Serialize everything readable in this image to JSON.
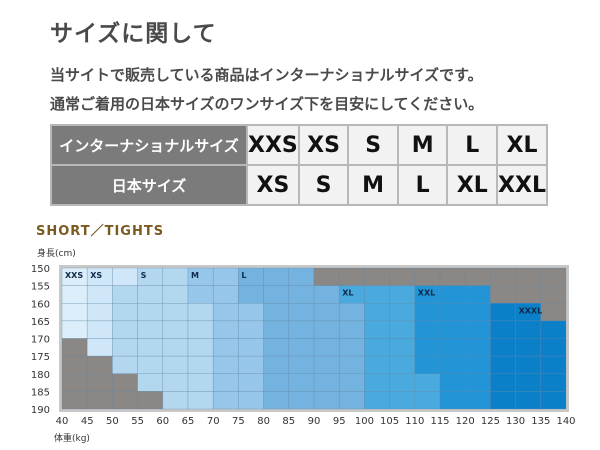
{
  "title": "サイズに関して",
  "description": [
    "当サイトで販売している商品はインターナショナルサイズです。",
    "通常ご着用の日本サイズのワンサイズ下を目安にしてください。"
  ],
  "size_table": {
    "rows": [
      {
        "header": "インターナショナルサイズ",
        "sizes": [
          "XXS",
          "XS",
          "S",
          "M",
          "L",
          "XL"
        ]
      },
      {
        "header": "日本サイズ",
        "sizes": [
          "XS",
          "S",
          "M",
          "L",
          "XL",
          "XXL"
        ]
      }
    ]
  },
  "section_title": "SHORT／TIGHTS",
  "chart_data": {
    "type": "heatmap",
    "xlabel": "体重(kg)",
    "ylabel": "身長(cm)",
    "x_ticks": [
      40,
      45,
      50,
      55,
      60,
      65,
      70,
      75,
      80,
      85,
      90,
      95,
      100,
      105,
      110,
      115,
      120,
      125,
      130,
      135,
      140
    ],
    "y_ticks": [
      150,
      155,
      160,
      165,
      170,
      175,
      180,
      185,
      190
    ],
    "grid": true,
    "cells": [
      [
        "XXS",
        "XS",
        "XS",
        "S",
        "S",
        "M",
        "M",
        "L",
        "L",
        "L",
        "-",
        "-",
        "-",
        "-",
        "-",
        "-",
        "-",
        "-",
        "-",
        "-"
      ],
      [
        "XXS",
        "XS",
        "S",
        "S",
        "S",
        "M",
        "M",
        "L",
        "L",
        "L",
        "L",
        "XL",
        "XL",
        "XL",
        "XXL",
        "XXL",
        "XXL",
        "-",
        "-",
        "-"
      ],
      [
        "XXS",
        "XS",
        "S",
        "S",
        "S",
        "S",
        "M",
        "M",
        "L",
        "L",
        "L",
        "L",
        "XL",
        "XL",
        "XXL",
        "XXL",
        "XXL",
        "XXXL",
        "XXXL",
        "-"
      ],
      [
        "XXS",
        "XS",
        "S",
        "S",
        "S",
        "S",
        "M",
        "M",
        "L",
        "L",
        "L",
        "L",
        "XL",
        "XL",
        "XXL",
        "XXL",
        "XXL",
        "XXXL",
        "XXXL",
        "XXXL"
      ],
      [
        "-",
        "XS",
        "S",
        "S",
        "S",
        "S",
        "M",
        "M",
        "L",
        "L",
        "L",
        "L",
        "XL",
        "XL",
        "XXL",
        "XXL",
        "XXL",
        "XXXL",
        "XXXL",
        "XXXL"
      ],
      [
        "-",
        "-",
        "S",
        "S",
        "S",
        "S",
        "M",
        "M",
        "L",
        "L",
        "L",
        "L",
        "XL",
        "XL",
        "XXL",
        "XXL",
        "XXL",
        "XXXL",
        "XXXL",
        "XXXL"
      ],
      [
        "-",
        "-",
        "-",
        "S",
        "S",
        "S",
        "M",
        "M",
        "L",
        "L",
        "L",
        "L",
        "XL",
        "XL",
        "XL",
        "XXL",
        "XXL",
        "XXXL",
        "XXXL",
        "XXXL"
      ],
      [
        "-",
        "-",
        "-",
        "-",
        "S",
        "S",
        "M",
        "M",
        "L",
        "L",
        "L",
        "L",
        "XL",
        "XL",
        "XL",
        "XXL",
        "XXL",
        "XXXL",
        "XXXL",
        "XXXL"
      ]
    ],
    "region_labels": [
      {
        "text": "XXS",
        "x": 40,
        "y": 150
      },
      {
        "text": "XS",
        "x": 45,
        "y": 150
      },
      {
        "text": "S",
        "x": 55,
        "y": 150
      },
      {
        "text": "M",
        "x": 65,
        "y": 150
      },
      {
        "text": "L",
        "x": 75,
        "y": 150
      },
      {
        "text": "XL",
        "x": 95,
        "y": 155
      },
      {
        "text": "XXL",
        "x": 110,
        "y": 155
      },
      {
        "text": "XXXL",
        "x": 130,
        "y": 160
      }
    ],
    "colors": {
      "-": "#8a8784",
      "XXS": "#dbeefa",
      "XS": "#cfe7f8",
      "S": "#b4d7f0",
      "M": "#96c6e9",
      "L": "#74b3df",
      "XL": "#4aaade",
      "XXL": "#2394d6",
      "XXXL": "#0c7fc9"
    }
  }
}
